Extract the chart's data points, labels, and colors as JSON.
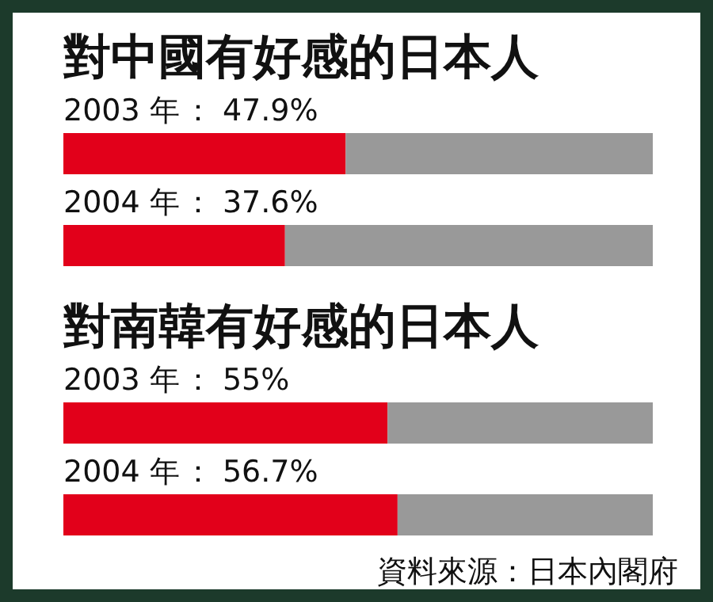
{
  "chart_data": [
    {
      "type": "bar",
      "orientation": "horizontal",
      "stacked": true,
      "title": "對中國有好感的日本人",
      "categories": [
        "2003 年",
        "2004 年"
      ],
      "xlim": [
        0,
        100
      ],
      "series": [
        {
          "color": "#e2001a",
          "values": [
            47.9,
            37.6
          ],
          "value_labels": [
            "： 47.9%",
            "： 37.6%"
          ]
        },
        {
          "color": "#999999",
          "values": [
            52.1,
            62.4
          ]
        }
      ]
    },
    {
      "type": "bar",
      "orientation": "horizontal",
      "stacked": true,
      "title": "對南韓有好感的日本人",
      "categories": [
        "2003 年",
        "2004 年"
      ],
      "xlim": [
        0,
        100
      ],
      "series": [
        {
          "color": "#e2001a",
          "values": [
            55,
            56.7
          ],
          "value_labels": [
            "： 55%",
            "： 56.7%"
          ]
        },
        {
          "color": "#999999",
          "values": [
            45,
            43.3
          ]
        }
      ],
      "annotations": [
        "資料來源：日本內閣府"
      ]
    }
  ]
}
